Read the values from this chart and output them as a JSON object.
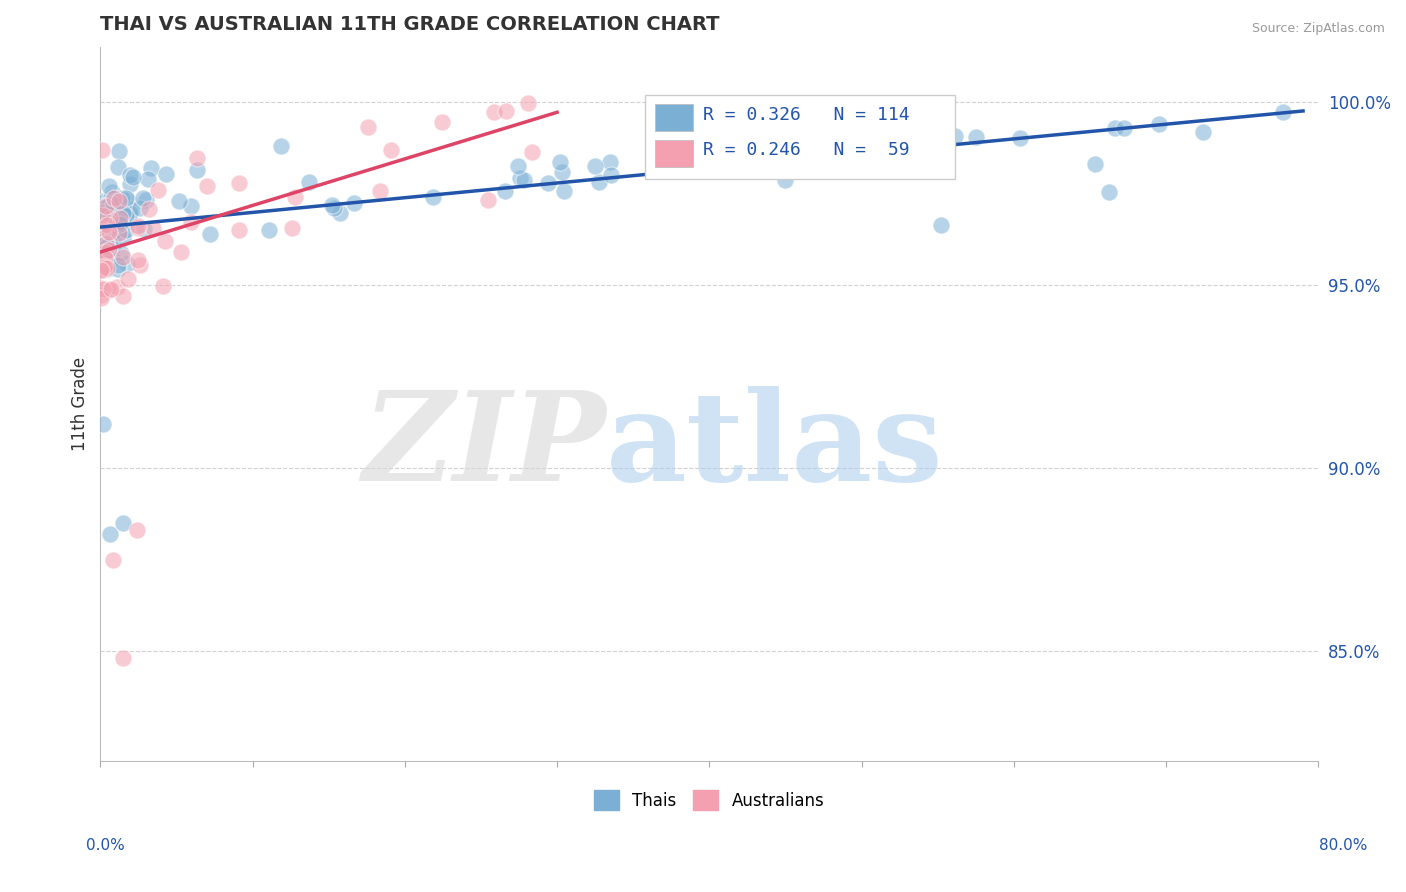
{
  "title": "THAI VS AUSTRALIAN 11TH GRADE CORRELATION CHART",
  "source": "Source: ZipAtlas.com",
  "ylabel": "11th Grade",
  "xlim": [
    0.0,
    80.0
  ],
  "ylim": [
    82.0,
    101.5
  ],
  "ytick_values": [
    85.0,
    90.0,
    95.0,
    100.0
  ],
  "legend_r_thai": "R = 0.326",
  "legend_n_thai": "N = 114",
  "legend_r_aus": "R = 0.246",
  "legend_n_aus": "N =  59",
  "thai_color": "#7BAFD4",
  "aus_color": "#F4A0B0",
  "thai_line_color": "#2255AA",
  "aus_line_color": "#DD4466",
  "background_color": "#FFFFFF",
  "seed": 123
}
